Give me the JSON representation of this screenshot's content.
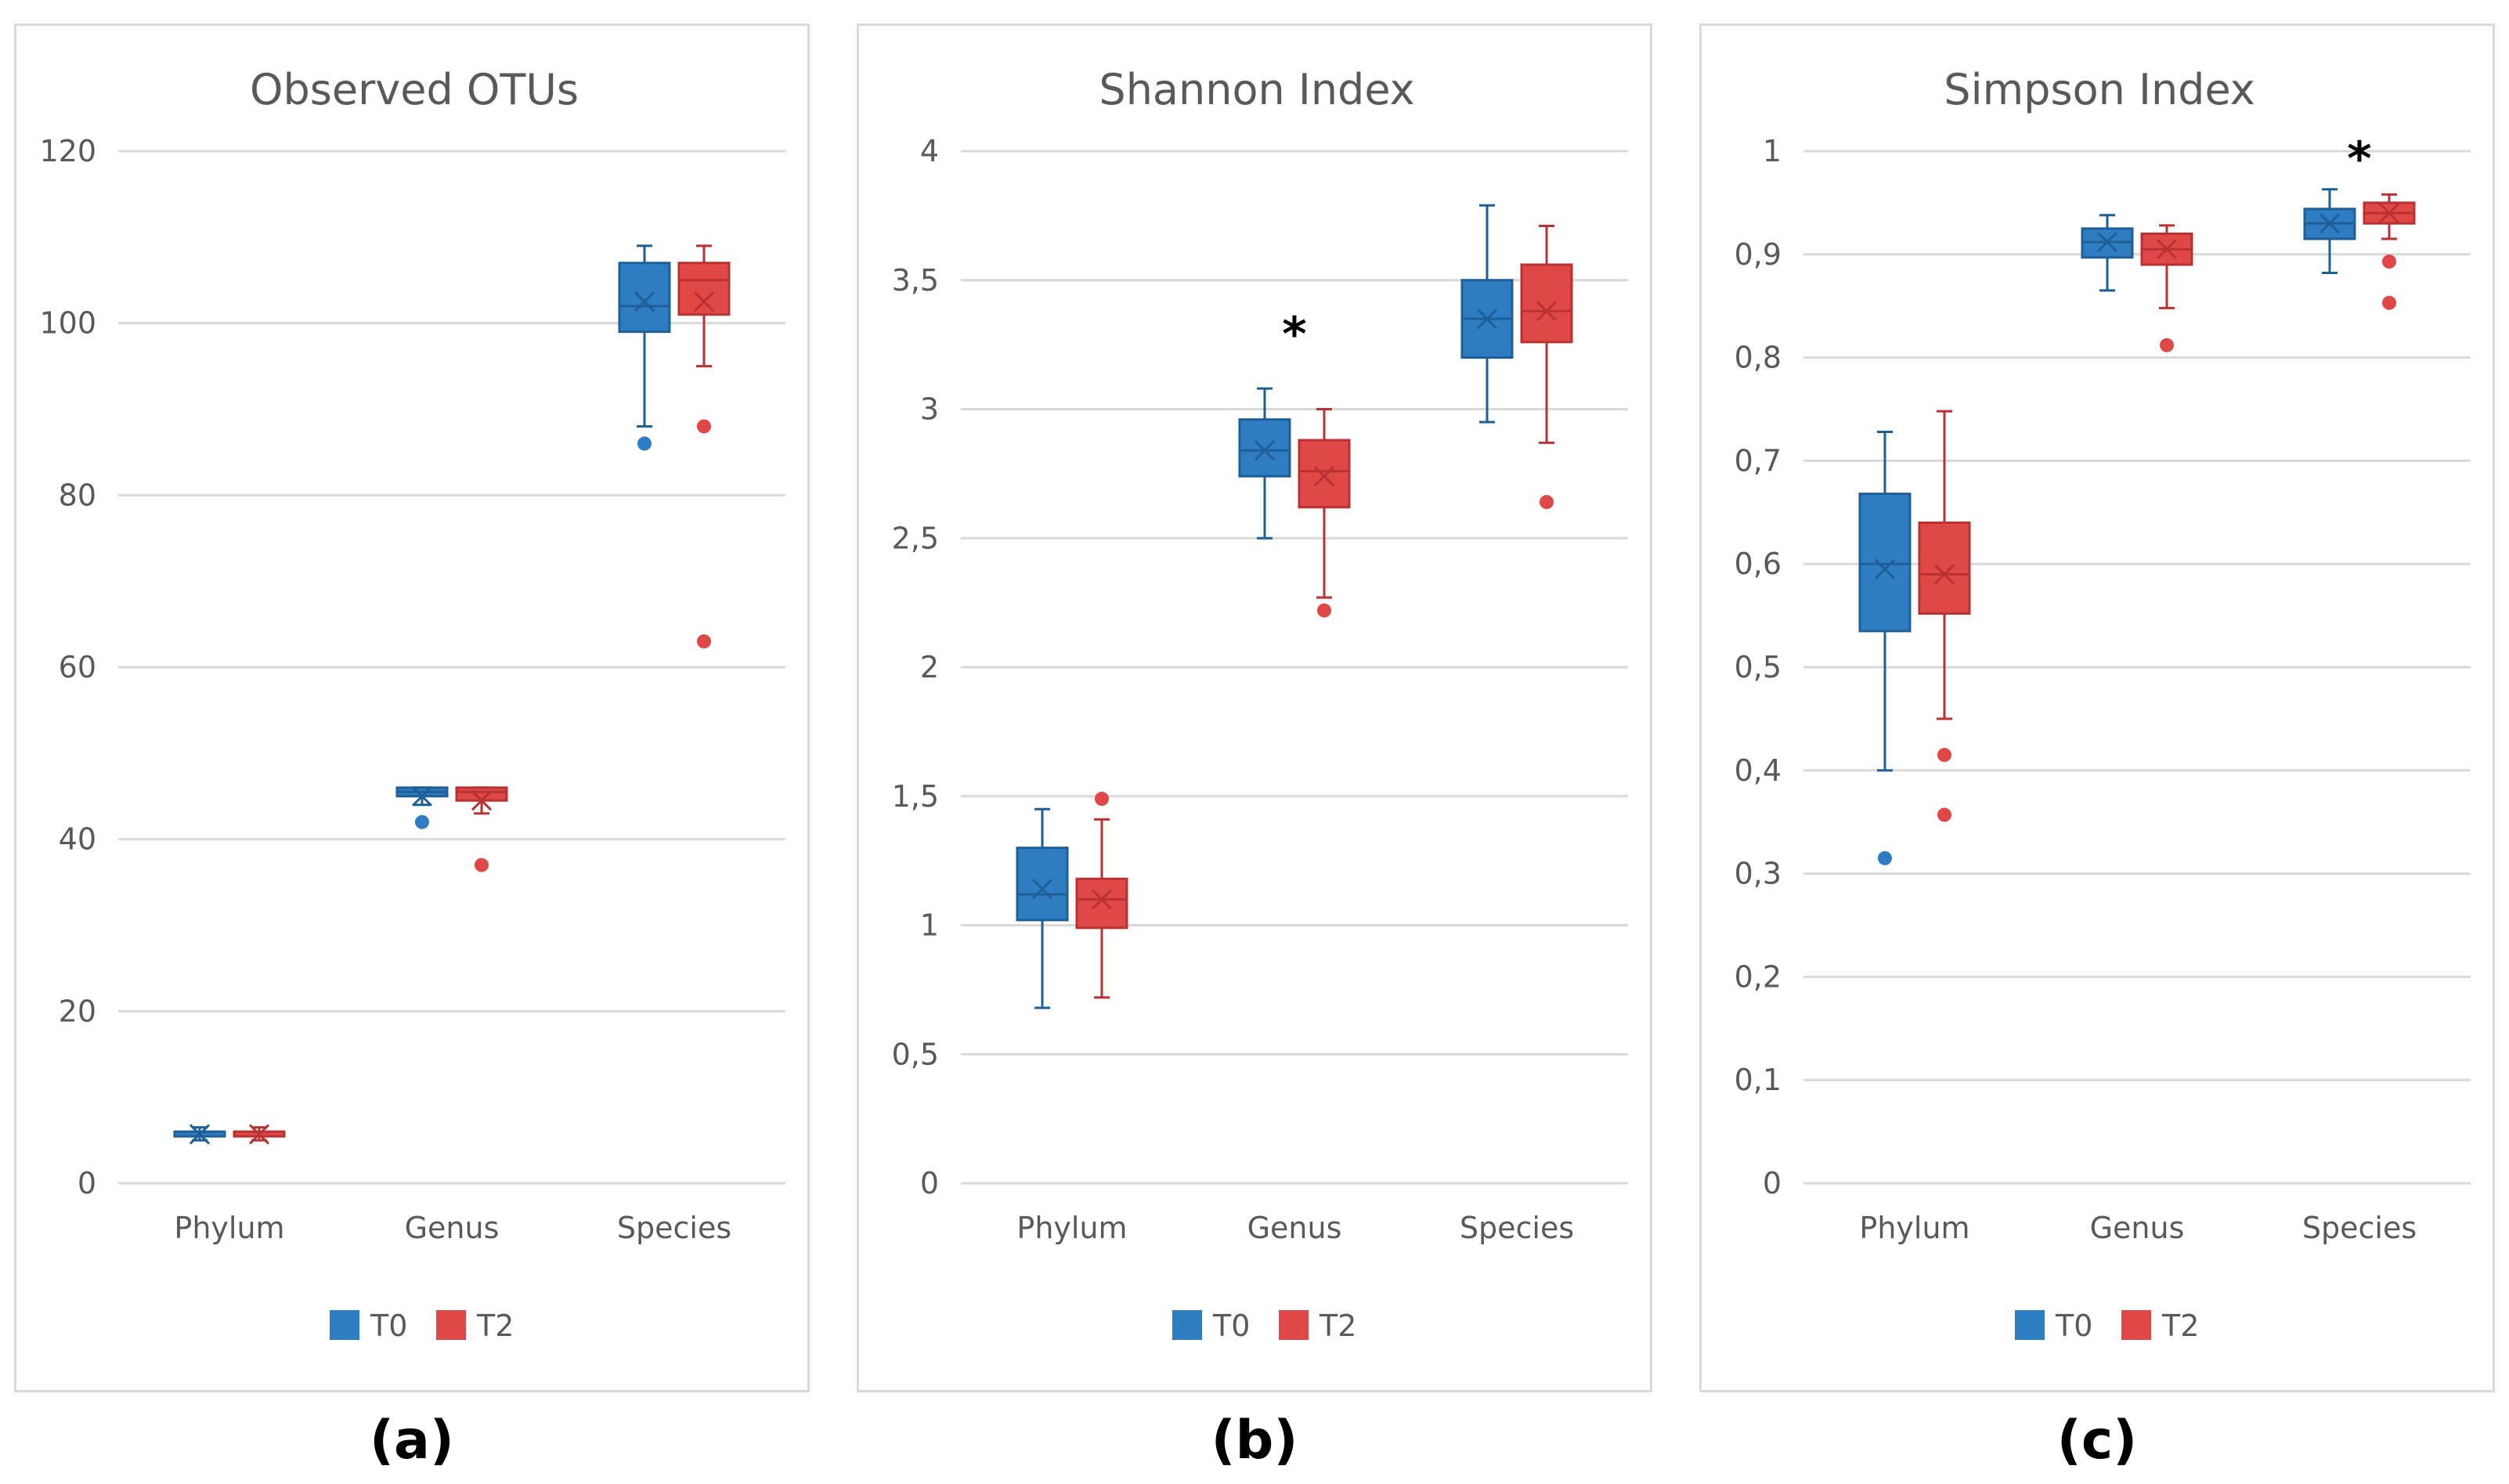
{
  "colors": {
    "T0": "#2e7cc1",
    "T0_dark": "#1f5f98",
    "T2": "#e04848",
    "T2_dark": "#b83232",
    "grid": "#d9d9d9",
    "text": "#595959"
  },
  "legend": [
    "T0",
    "T2"
  ],
  "panel_labels": [
    "(a)",
    "(b)",
    "(c)"
  ],
  "chart_data": [
    {
      "type": "box",
      "title": "Observed OTUs",
      "categories": [
        "Phylum",
        "Genus",
        "Species"
      ],
      "ylim": [
        0,
        120
      ],
      "yticks": [
        0,
        20,
        40,
        60,
        80,
        100,
        120
      ],
      "ytick_labels": [
        "0",
        "20",
        "40",
        "60",
        "80",
        "100",
        "120"
      ],
      "significance": [],
      "series": [
        {
          "name": "T0",
          "boxes": [
            {
              "min": 5,
              "q1": 5.5,
              "median": 6,
              "q3": 6,
              "max": 6.5,
              "mean": 5.7,
              "outliers": []
            },
            {
              "min": 44,
              "q1": 45,
              "median": 45.5,
              "q3": 46,
              "max": 46,
              "mean": 45,
              "outliers": [
                42
              ]
            },
            {
              "min": 88,
              "q1": 99,
              "median": 102,
              "q3": 107,
              "max": 109,
              "mean": 102.5,
              "outliers": [
                86
              ]
            }
          ]
        },
        {
          "name": "T2",
          "boxes": [
            {
              "min": 5,
              "q1": 5.5,
              "median": 6,
              "q3": 6,
              "max": 6.5,
              "mean": 5.7,
              "outliers": []
            },
            {
              "min": 43,
              "q1": 44.5,
              "median": 45.5,
              "q3": 46,
              "max": 46,
              "mean": 44.5,
              "outliers": [
                37
              ]
            },
            {
              "min": 95,
              "q1": 101,
              "median": 105,
              "q3": 107,
              "max": 109,
              "mean": 102.5,
              "outliers": [
                88,
                63
              ]
            }
          ]
        }
      ]
    },
    {
      "type": "box",
      "title": "Shannon Index",
      "categories": [
        "Phylum",
        "Genus",
        "Species"
      ],
      "ylim": [
        0,
        4
      ],
      "yticks": [
        0,
        0.5,
        1,
        1.5,
        2,
        2.5,
        3,
        3.5,
        4
      ],
      "ytick_labels": [
        "0",
        "0,5",
        "1",
        "1,5",
        "2",
        "2,5",
        "3",
        "3,5",
        "4"
      ],
      "significance": [
        {
          "category": "Genus",
          "text": "*",
          "value": 3.32
        }
      ],
      "series": [
        {
          "name": "T0",
          "boxes": [
            {
              "min": 0.68,
              "q1": 1.02,
              "median": 1.12,
              "q3": 1.3,
              "max": 1.45,
              "mean": 1.14,
              "outliers": []
            },
            {
              "min": 2.5,
              "q1": 2.74,
              "median": 2.84,
              "q3": 2.96,
              "max": 3.08,
              "mean": 2.84,
              "outliers": []
            },
            {
              "min": 2.95,
              "q1": 3.2,
              "median": 3.35,
              "q3": 3.5,
              "max": 3.79,
              "mean": 3.35,
              "outliers": []
            }
          ]
        },
        {
          "name": "T2",
          "boxes": [
            {
              "min": 0.72,
              "q1": 0.99,
              "median": 1.1,
              "q3": 1.18,
              "max": 1.41,
              "mean": 1.1,
              "outliers": [
                1.49
              ]
            },
            {
              "min": 2.27,
              "q1": 2.62,
              "median": 2.76,
              "q3": 2.88,
              "max": 3.0,
              "mean": 2.74,
              "outliers": [
                2.22
              ]
            },
            {
              "min": 2.87,
              "q1": 3.26,
              "median": 3.38,
              "q3": 3.56,
              "max": 3.71,
              "mean": 3.38,
              "outliers": [
                2.64
              ]
            }
          ]
        }
      ]
    },
    {
      "type": "box",
      "title": "Simpson Index",
      "categories": [
        "Phylum",
        "Genus",
        "Species"
      ],
      "ylim": [
        0,
        1
      ],
      "yticks": [
        0,
        0.1,
        0.2,
        0.3,
        0.4,
        0.5,
        0.6,
        0.7,
        0.8,
        0.9,
        1
      ],
      "ytick_labels": [
        "0",
        "0,1",
        "0,2",
        "0,3",
        "0,4",
        "0,5",
        "0,6",
        "0,7",
        "0,8",
        "0,9",
        "1"
      ],
      "significance": [
        {
          "category": "Species",
          "text": "*",
          "value": 1.0
        }
      ],
      "series": [
        {
          "name": "T0",
          "boxes": [
            {
              "min": 0.4,
              "q1": 0.535,
              "median": 0.6,
              "q3": 0.668,
              "max": 0.728,
              "mean": 0.595,
              "outliers": [
                0.315
              ]
            },
            {
              "min": 0.865,
              "q1": 0.897,
              "median": 0.912,
              "q3": 0.925,
              "max": 0.938,
              "mean": 0.912,
              "outliers": []
            },
            {
              "min": 0.882,
              "q1": 0.915,
              "median": 0.93,
              "q3": 0.944,
              "max": 0.963,
              "mean": 0.93,
              "outliers": []
            }
          ]
        },
        {
          "name": "T2",
          "boxes": [
            {
              "min": 0.45,
              "q1": 0.552,
              "median": 0.59,
              "q3": 0.64,
              "max": 0.748,
              "mean": 0.59,
              "outliers": [
                0.415,
                0.357
              ]
            },
            {
              "min": 0.848,
              "q1": 0.89,
              "median": 0.905,
              "q3": 0.92,
              "max": 0.928,
              "mean": 0.905,
              "outliers": [
                0.812
              ]
            },
            {
              "min": 0.915,
              "q1": 0.93,
              "median": 0.94,
              "q3": 0.95,
              "max": 0.958,
              "mean": 0.94,
              "outliers": [
                0.893,
                0.853
              ]
            }
          ]
        }
      ]
    }
  ]
}
